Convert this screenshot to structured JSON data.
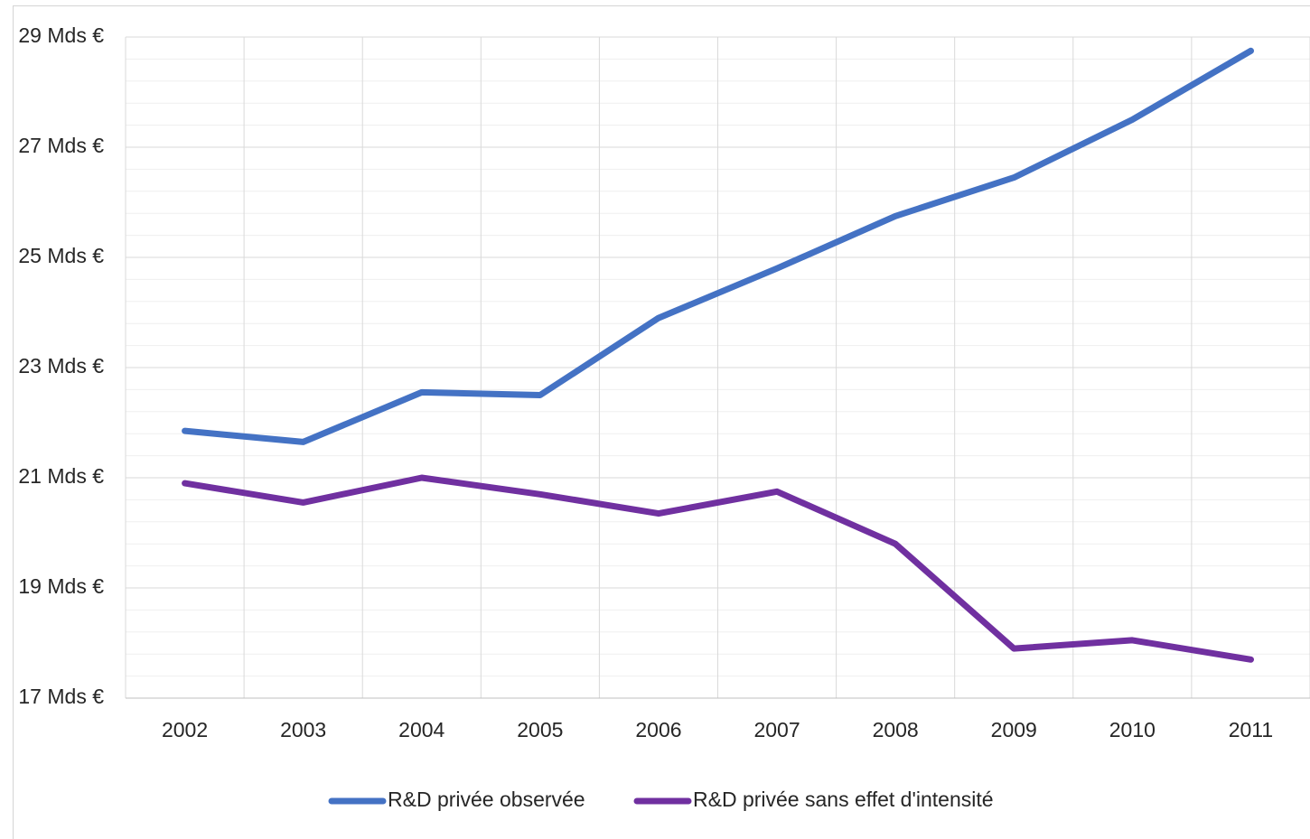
{
  "chart_data": {
    "type": "line",
    "title": "",
    "xlabel": "",
    "ylabel": "",
    "categories": [
      "2002",
      "2003",
      "2004",
      "2005",
      "2006",
      "2007",
      "2008",
      "2009",
      "2010",
      "2011"
    ],
    "ylim": [
      17,
      29
    ],
    "y_ticks": [
      17,
      19,
      21,
      23,
      25,
      27,
      29
    ],
    "y_tick_labels": [
      "17 Mds €",
      "19 Mds €",
      "21 Mds €",
      "23 Mds €",
      "25 Mds €",
      "27 Mds €",
      "29 Mds €"
    ],
    "grid": true,
    "legend_position": "bottom",
    "series": [
      {
        "name": "R&D privée observée",
        "color": "#4472C4",
        "values": [
          21.85,
          21.65,
          22.55,
          22.5,
          23.9,
          24.8,
          25.75,
          26.45,
          27.5,
          28.75
        ]
      },
      {
        "name": "R&D privée sans effet d'intensité",
        "color": "#7030A0",
        "values": [
          20.9,
          20.55,
          21.0,
          20.7,
          20.35,
          20.75,
          19.8,
          17.9,
          18.05,
          17.7
        ]
      }
    ]
  }
}
